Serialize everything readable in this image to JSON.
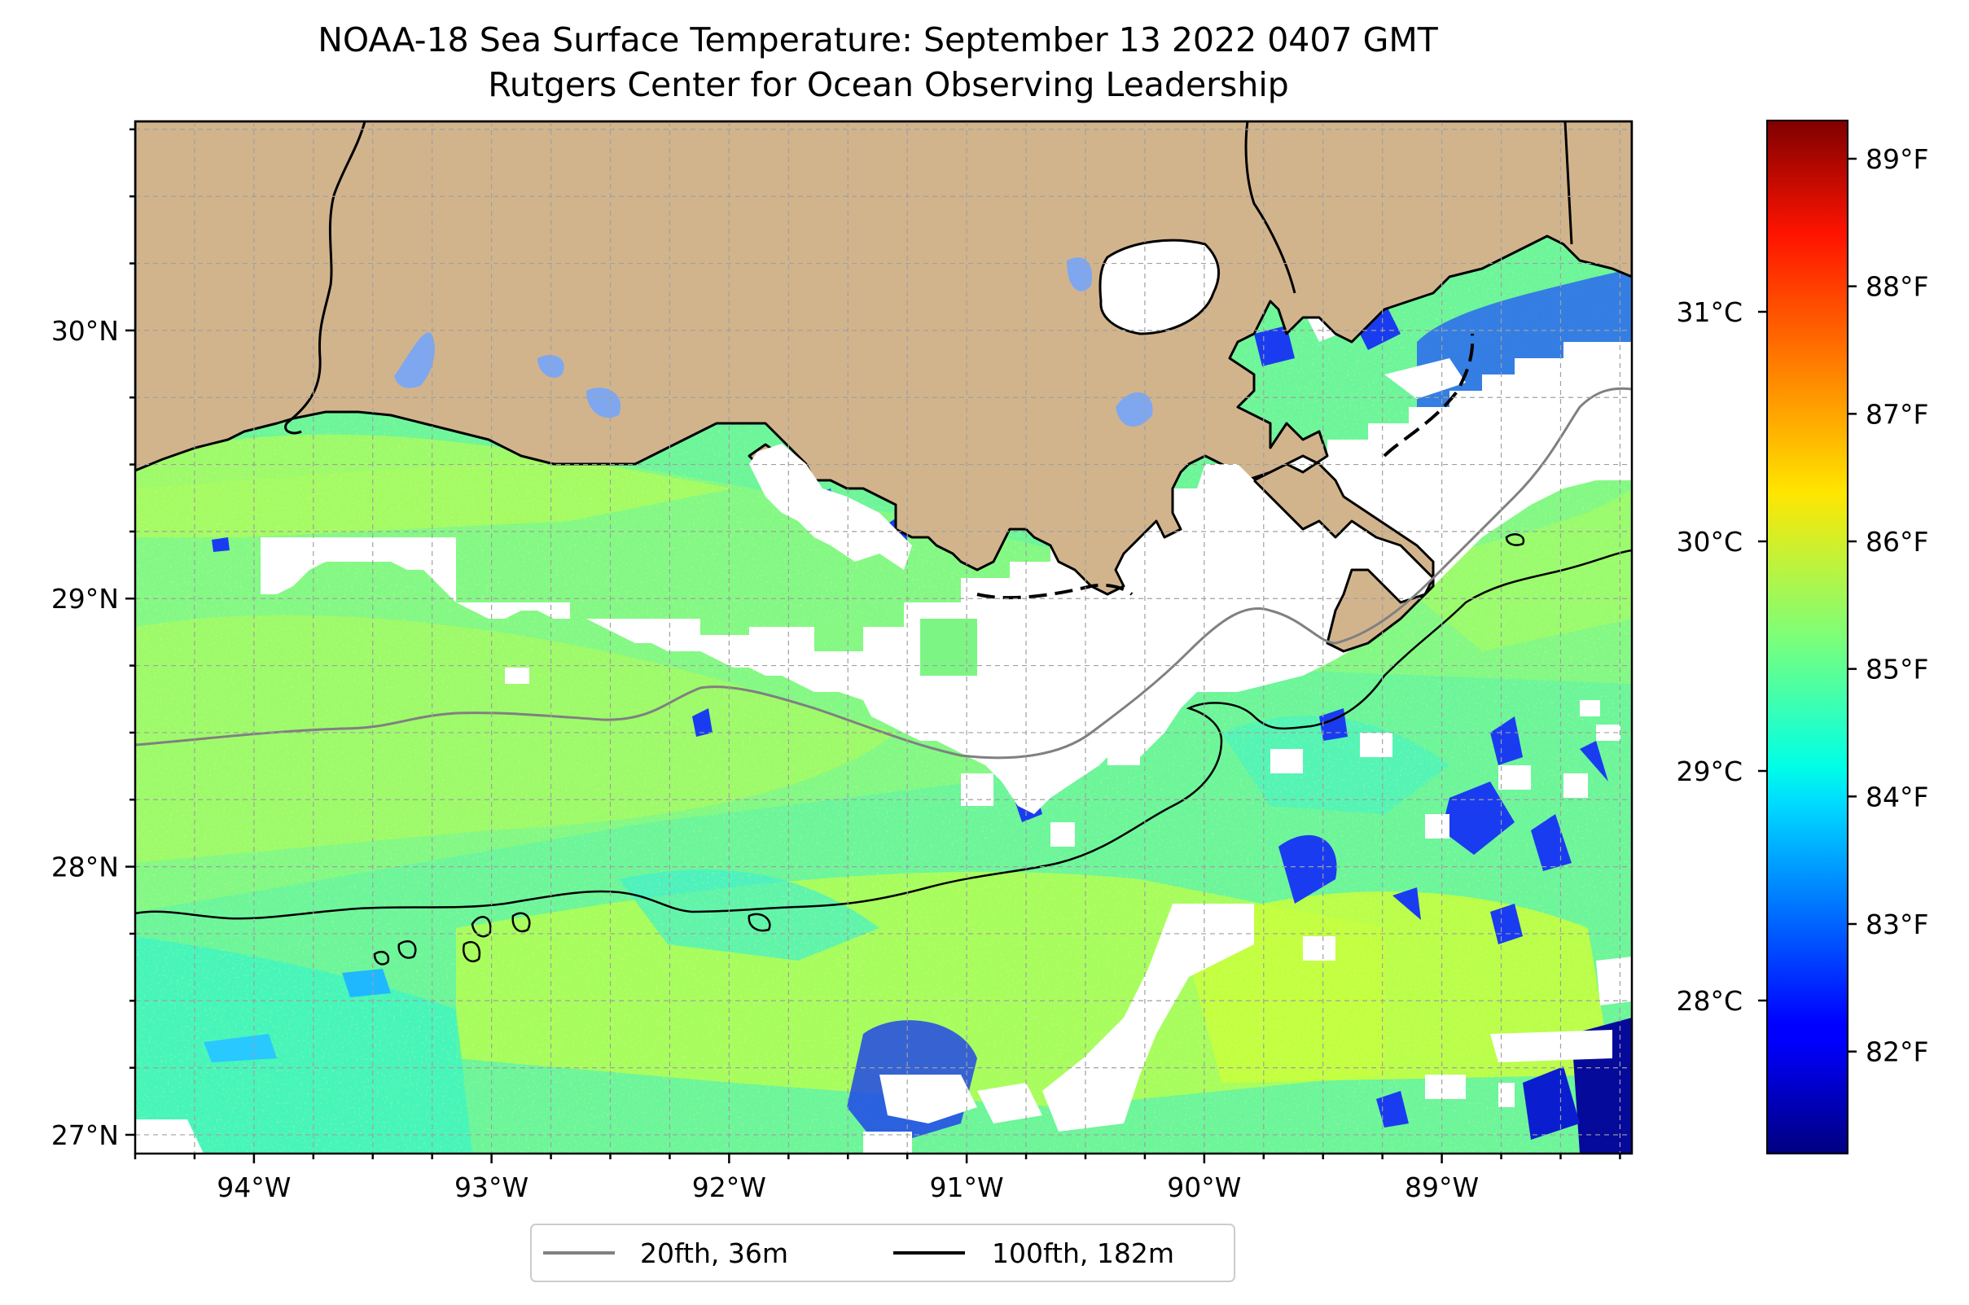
{
  "title": {
    "line1": "NOAA-18 Sea Surface Temperature: September 13 2022 0407 GMT",
    "line2": "Rutgers Center for Ocean Observing Leadership"
  },
  "map": {
    "extent": {
      "lon_min": -94.5,
      "lon_max": -88.2,
      "lat_min": 26.93,
      "lat_max": 30.78
    },
    "land_color": "#d2b48c",
    "gridlines": "dashed",
    "lat_ticks": [
      {
        "value": 30,
        "label": "30°N"
      },
      {
        "value": 29,
        "label": "29°N"
      },
      {
        "value": 28,
        "label": "28°N"
      },
      {
        "value": 27,
        "label": "27°N"
      }
    ],
    "lon_ticks": [
      {
        "value": -94,
        "label": "94°W"
      },
      {
        "value": -93,
        "label": "93°W"
      },
      {
        "value": -92,
        "label": "92°W"
      },
      {
        "value": -91,
        "label": "91°W"
      },
      {
        "value": -90,
        "label": "90°W"
      },
      {
        "value": -89,
        "label": "89°W"
      }
    ]
  },
  "legend": {
    "placement": "bottom-center",
    "items": [
      {
        "label": "20fth, 36m",
        "color": "#808080"
      },
      {
        "label": "100fth, 182m",
        "color": "#000000"
      }
    ]
  },
  "colorbar": {
    "colormap": "jet",
    "f_range": [
      81.2,
      89.3
    ],
    "f_ticks": [
      {
        "value": 82,
        "label": "82°F"
      },
      {
        "value": 83,
        "label": "83°F"
      },
      {
        "value": 84,
        "label": "84°F"
      },
      {
        "value": 85,
        "label": "85°F"
      },
      {
        "value": 86,
        "label": "86°F"
      },
      {
        "value": 87,
        "label": "87°F"
      },
      {
        "value": 88,
        "label": "88°F"
      },
      {
        "value": 89,
        "label": "89°F"
      }
    ],
    "c_ticks": [
      {
        "value": 28,
        "label": "28°C"
      },
      {
        "value": 29,
        "label": "29°C"
      },
      {
        "value": 30,
        "label": "30°C"
      },
      {
        "value": 31,
        "label": "31°C"
      }
    ]
  }
}
